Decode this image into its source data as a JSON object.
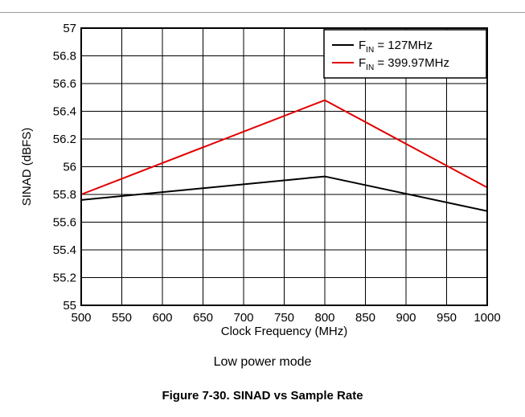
{
  "chart_data": {
    "type": "line",
    "xlabel": "Clock Frequency (MHz)",
    "ylabel": "SINAD (dBFS)",
    "xlim": [
      500,
      1000
    ],
    "ylim": [
      55,
      57
    ],
    "xticks": [
      500,
      550,
      600,
      650,
      700,
      750,
      800,
      850,
      900,
      950,
      1000
    ],
    "yticks": [
      "55",
      "55.2",
      "55.4",
      "55.6",
      "55.8",
      "56",
      "56.2",
      "56.4",
      "56.6",
      "56.8",
      "57"
    ],
    "grid": true,
    "legend_position": "top-right",
    "series": [
      {
        "name_base": "F",
        "name_sub": "IN",
        "name_rest": " = 127MHz",
        "color": "#000000",
        "x": [
          500,
          800,
          1000
        ],
        "y": [
          55.76,
          55.93,
          55.68
        ]
      },
      {
        "name_base": "F",
        "name_sub": "IN",
        "name_rest": " = 399.97MHz",
        "color": "#e00000",
        "x": [
          500,
          800,
          1000
        ],
        "y": [
          55.8,
          56.48,
          55.85
        ]
      }
    ]
  },
  "subtitle": "Low power mode",
  "caption": "Figure 7-30. SINAD vs Sample Rate"
}
